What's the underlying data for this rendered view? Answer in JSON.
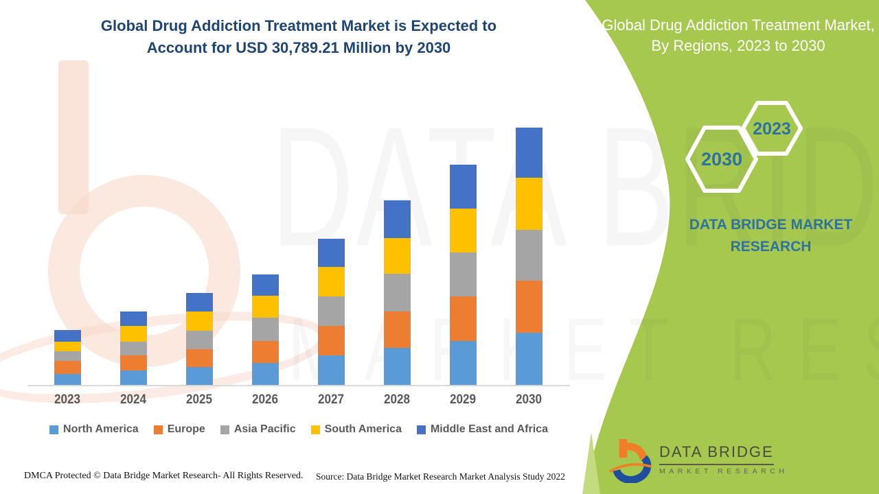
{
  "header": {
    "left_title_line1": "Global Drug Addiction Treatment Market is Expected to",
    "left_title_line2": "Account for USD 30,789.21 Million by 2030",
    "right_title": "Global Drug Addiction Treatment Market, By Regions, 2023 to 2030"
  },
  "side_panel": {
    "hexagon_front_label": "2023",
    "hexagon_back_label": "2030",
    "brand_line1": "DATA BRIDGE MARKET",
    "brand_line2": "RESEARCH"
  },
  "watermark": {
    "line1": "DATA BRIDGE",
    "line2": "MARKET RESEARCH"
  },
  "logo": {
    "name": "DATA BRIDGE",
    "subtitle": "MARKET RESEARCH"
  },
  "footer": {
    "left": "DMCA Protected © Data Bridge Market Research- All Rights Reserved.",
    "right": "Source: Data Bridge Market Research Market Analysis Study 2022"
  },
  "colors": {
    "panel_green": "#A6C84E",
    "title_blue": "#1F4572",
    "accent_steel_blue": "#2E73A0",
    "axis_gray": "#D9D9D9",
    "label_gray": "#595959",
    "north_america": "#5B9BD5",
    "europe": "#ED7D31",
    "asia_pacific": "#A5A5A5",
    "south_america": "#FFC000",
    "middle_east_africa": "#4472C4"
  },
  "chart_data": {
    "type": "bar",
    "stacked": true,
    "title": "Global Drug Addiction Treatment Market is Expected to Account for USD 30,789.21 Million by 2030",
    "unit": "USD Million",
    "categories": [
      "2023",
      "2024",
      "2025",
      "2026",
      "2027",
      "2028",
      "2029",
      "2030"
    ],
    "series": [
      {
        "name": "North America",
        "color": "#5B9BD5",
        "values": [
          1315,
          1725,
          2135,
          2630,
          3530,
          4435,
          5255,
          6240
        ]
      },
      {
        "name": "Europe",
        "color": "#ED7D31",
        "values": [
          1560,
          1805,
          2135,
          2630,
          3530,
          4350,
          5335,
          6240
        ]
      },
      {
        "name": "Asia Pacific",
        "color": "#A5A5A5",
        "values": [
          1150,
          1640,
          2215,
          2790,
          3530,
          4515,
          5255,
          6075
        ]
      },
      {
        "name": "South America",
        "color": "#FFC000",
        "values": [
          1150,
          1890,
          2300,
          2630,
          3530,
          4270,
          5255,
          6240
        ]
      },
      {
        "name": "Middle East and Africa",
        "color": "#4472C4",
        "values": [
          1395,
          1725,
          2215,
          2545,
          3365,
          4515,
          5255,
          5995
        ]
      }
    ],
    "totals_estimated": [
      6570,
      8785,
      11000,
      13225,
      17485,
      22085,
      26355,
      30789.21
    ],
    "highlight_value_2030_total": "30,789.21",
    "xlabel": "",
    "ylabel": "",
    "y_axis_visible": false,
    "gridlines": false,
    "legend_position": "bottom"
  }
}
